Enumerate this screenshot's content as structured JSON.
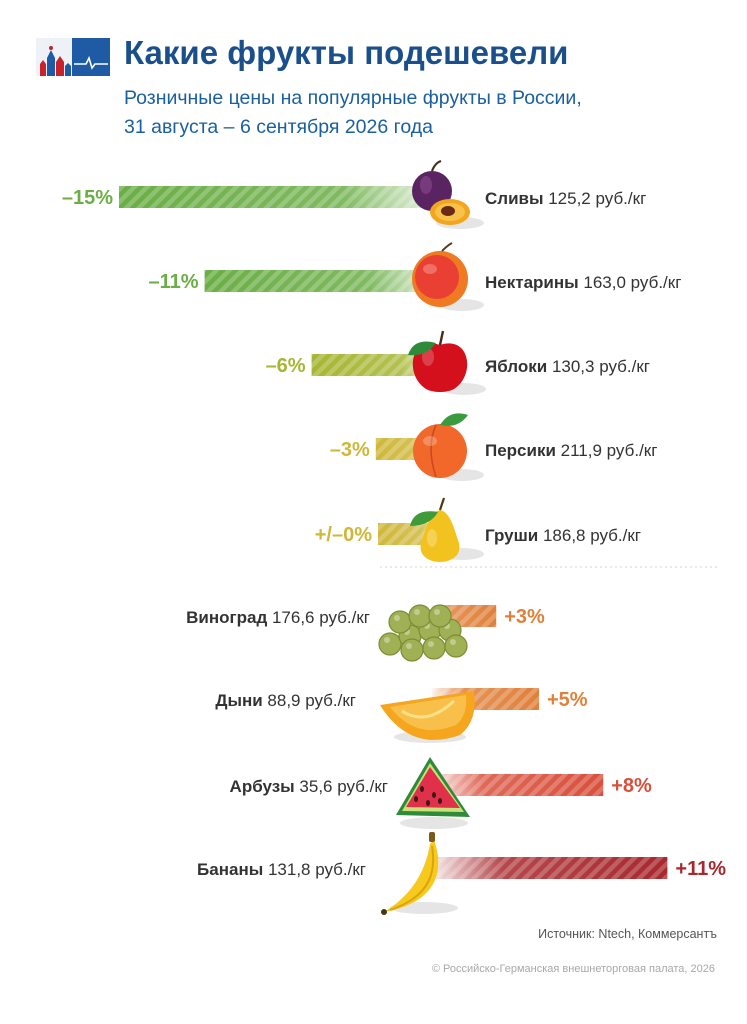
{
  "header": {
    "title": "Какие фрукты подешевели",
    "subtitle_line1": "Розничные цены на популярные фрукты в России,",
    "subtitle_line2": "31 августа – 6 сентября 2026 года"
  },
  "chart_data": {
    "type": "bar",
    "title": "Какие фрукты подешевели",
    "subtitle": "Розничные цены на популярные фрукты в России, 31 августа – 6 сентября 2026 года",
    "categories": [
      "Сливы",
      "Нектарины",
      "Яблоки",
      "Персики",
      "Груши",
      "Виноград",
      "Дыни",
      "Арбузы",
      "Бананы"
    ],
    "values": [
      -15,
      -11,
      -6,
      -3,
      0,
      3,
      5,
      8,
      11
    ],
    "value_labels": [
      "–15%",
      "–11%",
      "–6%",
      "–3%",
      "+/–0%",
      "+3%",
      "+5%",
      "+8%",
      "+11%"
    ],
    "prices": [
      "125,2 руб./кг",
      "163,0 руб./кг",
      "130,3 руб./кг",
      "211,9 руб./кг",
      "186,8 руб./кг",
      "176,6 руб./кг",
      "88,9 руб./кг",
      "35,6 руб./кг",
      "131,8 руб./кг"
    ],
    "icons": [
      "plum-icon",
      "nectarine-icon",
      "apple-icon",
      "peach-icon",
      "pear-icon",
      "grapes-icon",
      "melon-icon",
      "watermelon-icon",
      "banana-icon"
    ],
    "colors": {
      "decline_strong": "#6aae45",
      "decline_mid": "#a6b632",
      "decline_weak": "#cfb73a",
      "neutral": "#cfb73a",
      "rise_weak": "#e0803a",
      "rise_mid": "#d94f3b",
      "rise_strong": "#a8282d"
    }
  },
  "footer": {
    "source": "Источник: Ntech, Коммерсантъ",
    "copyright": "© Российско-Германская внешнеторговая палата, 2026"
  }
}
